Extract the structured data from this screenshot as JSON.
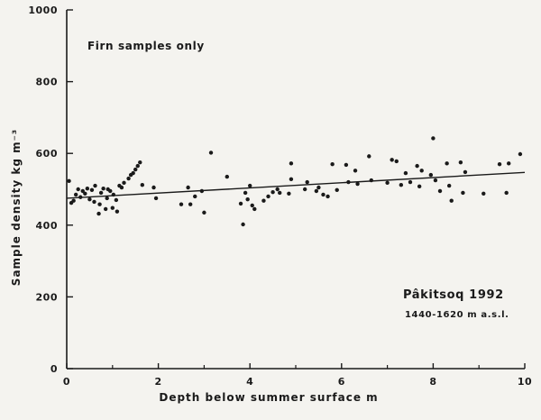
{
  "chart_data": {
    "type": "scatter",
    "xlabel": "Depth below summer surface m",
    "ylabel": "Sample density kg m⁻³",
    "xlim": [
      0,
      10
    ],
    "ylim": [
      0,
      1000
    ],
    "x_ticks": [
      "0",
      "2",
      "4",
      "6",
      "8",
      "10"
    ],
    "y_ticks": [
      "0",
      "200",
      "400",
      "600",
      "800",
      "1000"
    ],
    "grid": false,
    "annotations": {
      "note": "Firn samples only",
      "site": "Pâkitsoq 1992",
      "elevation": "1440-1620 m a.s.l."
    },
    "points": [
      {
        "x": 0.05,
        "y": 523
      },
      {
        "x": 0.1,
        "y": 462
      },
      {
        "x": 0.15,
        "y": 468
      },
      {
        "x": 0.2,
        "y": 485
      },
      {
        "x": 0.25,
        "y": 500
      },
      {
        "x": 0.3,
        "y": 478
      },
      {
        "x": 0.35,
        "y": 495
      },
      {
        "x": 0.4,
        "y": 488
      },
      {
        "x": 0.45,
        "y": 502
      },
      {
        "x": 0.5,
        "y": 472
      },
      {
        "x": 0.55,
        "y": 498
      },
      {
        "x": 0.6,
        "y": 465
      },
      {
        "x": 0.62,
        "y": 510
      },
      {
        "x": 0.7,
        "y": 432
      },
      {
        "x": 0.72,
        "y": 458
      },
      {
        "x": 0.75,
        "y": 490
      },
      {
        "x": 0.8,
        "y": 502
      },
      {
        "x": 0.85,
        "y": 445
      },
      {
        "x": 0.88,
        "y": 475
      },
      {
        "x": 0.9,
        "y": 500
      },
      {
        "x": 0.95,
        "y": 495
      },
      {
        "x": 1.0,
        "y": 448
      },
      {
        "x": 1.02,
        "y": 485
      },
      {
        "x": 1.08,
        "y": 470
      },
      {
        "x": 1.1,
        "y": 438
      },
      {
        "x": 1.15,
        "y": 510
      },
      {
        "x": 1.2,
        "y": 505
      },
      {
        "x": 1.25,
        "y": 518
      },
      {
        "x": 1.35,
        "y": 530
      },
      {
        "x": 1.4,
        "y": 540
      },
      {
        "x": 1.45,
        "y": 545
      },
      {
        "x": 1.5,
        "y": 555
      },
      {
        "x": 1.55,
        "y": 565
      },
      {
        "x": 1.6,
        "y": 575
      },
      {
        "x": 1.65,
        "y": 512
      },
      {
        "x": 1.9,
        "y": 505
      },
      {
        "x": 1.95,
        "y": 475
      },
      {
        "x": 2.5,
        "y": 458
      },
      {
        "x": 2.65,
        "y": 505
      },
      {
        "x": 2.7,
        "y": 458
      },
      {
        "x": 2.8,
        "y": 480
      },
      {
        "x": 2.95,
        "y": 495
      },
      {
        "x": 3.0,
        "y": 435
      },
      {
        "x": 3.15,
        "y": 602
      },
      {
        "x": 3.5,
        "y": 535
      },
      {
        "x": 3.8,
        "y": 460
      },
      {
        "x": 3.85,
        "y": 402
      },
      {
        "x": 3.9,
        "y": 490
      },
      {
        "x": 3.95,
        "y": 472
      },
      {
        "x": 4.0,
        "y": 510
      },
      {
        "x": 4.05,
        "y": 455
      },
      {
        "x": 4.1,
        "y": 445
      },
      {
        "x": 4.3,
        "y": 468
      },
      {
        "x": 4.4,
        "y": 480
      },
      {
        "x": 4.5,
        "y": 492
      },
      {
        "x": 4.6,
        "y": 500
      },
      {
        "x": 4.65,
        "y": 490
      },
      {
        "x": 4.85,
        "y": 488
      },
      {
        "x": 4.9,
        "y": 528
      },
      {
        "x": 4.9,
        "y": 572
      },
      {
        "x": 5.2,
        "y": 500
      },
      {
        "x": 5.25,
        "y": 520
      },
      {
        "x": 5.45,
        "y": 495
      },
      {
        "x": 5.5,
        "y": 505
      },
      {
        "x": 5.6,
        "y": 485
      },
      {
        "x": 5.7,
        "y": 480
      },
      {
        "x": 5.8,
        "y": 570
      },
      {
        "x": 5.9,
        "y": 498
      },
      {
        "x": 6.1,
        "y": 568
      },
      {
        "x": 6.15,
        "y": 520
      },
      {
        "x": 6.3,
        "y": 552
      },
      {
        "x": 6.35,
        "y": 515
      },
      {
        "x": 6.6,
        "y": 592
      },
      {
        "x": 6.65,
        "y": 525
      },
      {
        "x": 7.0,
        "y": 518
      },
      {
        "x": 7.1,
        "y": 582
      },
      {
        "x": 7.2,
        "y": 578
      },
      {
        "x": 7.3,
        "y": 512
      },
      {
        "x": 7.4,
        "y": 545
      },
      {
        "x": 7.5,
        "y": 520
      },
      {
        "x": 7.65,
        "y": 565
      },
      {
        "x": 7.7,
        "y": 508
      },
      {
        "x": 7.75,
        "y": 552
      },
      {
        "x": 7.95,
        "y": 540
      },
      {
        "x": 8.0,
        "y": 642
      },
      {
        "x": 8.05,
        "y": 525
      },
      {
        "x": 8.15,
        "y": 495
      },
      {
        "x": 8.3,
        "y": 572
      },
      {
        "x": 8.35,
        "y": 510
      },
      {
        "x": 8.4,
        "y": 468
      },
      {
        "x": 8.6,
        "y": 575
      },
      {
        "x": 8.65,
        "y": 490
      },
      {
        "x": 8.7,
        "y": 548
      },
      {
        "x": 9.1,
        "y": 488
      },
      {
        "x": 9.45,
        "y": 570
      },
      {
        "x": 9.6,
        "y": 490
      },
      {
        "x": 9.65,
        "y": 572
      },
      {
        "x": 9.9,
        "y": 598
      }
    ],
    "trend_line": {
      "x": [
        0,
        10
      ],
      "y": [
        475,
        547
      ]
    }
  }
}
